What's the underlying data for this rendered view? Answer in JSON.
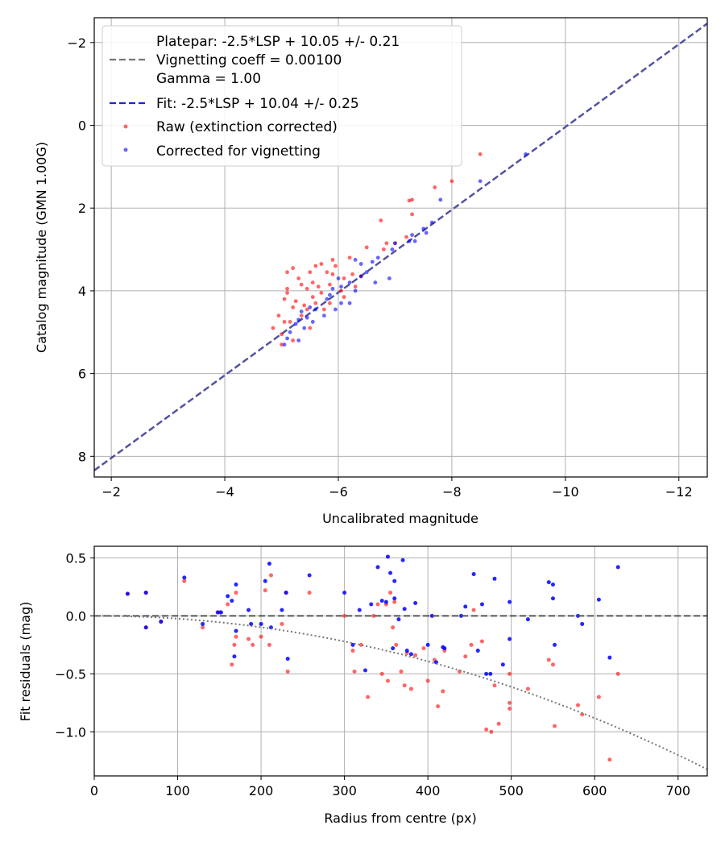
{
  "colors": {
    "raw": "#ff0000",
    "corrected": "#0000ff",
    "fit_line": "#2222cc",
    "platepar_line": "#777777",
    "grid": "#b0b0b0"
  },
  "chart_data": [
    {
      "id": "calibration",
      "type": "scatter",
      "xlabel": "Uncalibrated magnitude",
      "ylabel": "Catalog magnitude (GMN 1.00G)",
      "xlim": [
        -1.7,
        -12.5
      ],
      "ylim": [
        8.5,
        -2.6
      ],
      "xticks": [
        -2,
        -4,
        -6,
        -8,
        -10,
        -12
      ],
      "xtick_labels": [
        "−2",
        "−4",
        "−6",
        "−8",
        "−10",
        "−12"
      ],
      "yticks": [
        -2,
        0,
        2,
        4,
        6,
        8
      ],
      "ytick_labels": [
        "−2",
        "0",
        "2",
        "4",
        "6",
        "8"
      ],
      "grid": true,
      "legend": {
        "placement": "upper-left",
        "entries": [
          {
            "key": "platepar",
            "lines": [
              "Platepar: -2.5*LSP + 10.05 +/- 0.21",
              "Vignetting coeff = 0.00100",
              "Gamma = 1.00"
            ],
            "style": "dashed-gray"
          },
          {
            "key": "fit",
            "lines": [
              "Fit: -2.5*LSP + 10.04 +/- 0.25"
            ],
            "style": "dashed-blue"
          },
          {
            "key": "raw",
            "lines": [
              "Raw (extinction corrected)"
            ],
            "style": "dot-red"
          },
          {
            "key": "corrected",
            "lines": [
              "Corrected for vignetting"
            ],
            "style": "dot-blue"
          }
        ]
      },
      "lines": [
        {
          "name": "Fit",
          "slope": 1,
          "intercept": 10.04,
          "x_range": [
            -1.7,
            -12.5
          ]
        },
        {
          "name": "Platepar",
          "slope": 1,
          "intercept": 10.05,
          "x_range": [
            -1.7,
            -12.5
          ]
        }
      ],
      "series": [
        {
          "name": "Raw (extinction corrected)",
          "points": [
            [
              -8.5,
              0.7
            ],
            [
              -8.0,
              1.35
            ],
            [
              -7.7,
              1.5
            ],
            [
              -7.3,
              1.8
            ],
            [
              -7.25,
              1.82
            ],
            [
              -7.3,
              2.15
            ],
            [
              -7.2,
              2.7
            ],
            [
              -6.75,
              2.3
            ],
            [
              -7.0,
              2.85
            ],
            [
              -6.85,
              2.85
            ],
            [
              -6.8,
              3.0
            ],
            [
              -6.5,
              2.95
            ],
            [
              -6.2,
              3.2
            ],
            [
              -5.9,
              3.25
            ],
            [
              -5.95,
              3.4
            ],
            [
              -5.7,
              3.35
            ],
            [
              -5.6,
              3.4
            ],
            [
              -5.8,
              3.55
            ],
            [
              -5.5,
              3.55
            ],
            [
              -5.2,
              3.45
            ],
            [
              -5.1,
              3.55
            ],
            [
              -5.9,
              3.6
            ],
            [
              -6.25,
              3.6
            ],
            [
              -6.4,
              3.65
            ],
            [
              -6.1,
              3.7
            ],
            [
              -5.3,
              3.7
            ],
            [
              -5.55,
              3.8
            ],
            [
              -5.85,
              3.85
            ],
            [
              -5.65,
              3.9
            ],
            [
              -5.45,
              3.95
            ],
            [
              -5.1,
              3.95
            ],
            [
              -6.05,
              4.0
            ],
            [
              -5.1,
              4.05
            ],
            [
              -5.7,
              4.05
            ],
            [
              -5.05,
              4.2
            ],
            [
              -5.25,
              4.25
            ],
            [
              -5.6,
              4.3
            ],
            [
              -5.85,
              4.3
            ],
            [
              -5.2,
              4.4
            ],
            [
              -5.45,
              4.45
            ],
            [
              -4.95,
              4.6
            ],
            [
              -5.35,
              4.6
            ],
            [
              -5.05,
              4.75
            ],
            [
              -5.15,
              4.75
            ],
            [
              -4.85,
              4.9
            ],
            [
              -5.5,
              4.9
            ],
            [
              -5.0,
              5.05
            ],
            [
              -5.2,
              5.2
            ],
            [
              -5.0,
              5.3
            ],
            [
              -5.4,
              4.35
            ],
            [
              -5.75,
              4.45
            ],
            [
              -6.1,
              4.15
            ],
            [
              -6.3,
              3.9
            ],
            [
              -5.35,
              3.85
            ],
            [
              -5.55,
              4.15
            ]
          ]
        },
        {
          "name": "Corrected for vignetting",
          "points": [
            [
              -9.3,
              0.7
            ],
            [
              -8.5,
              1.35
            ],
            [
              -7.8,
              1.8
            ],
            [
              -7.65,
              2.35
            ],
            [
              -7.5,
              2.5
            ],
            [
              -7.55,
              2.6
            ],
            [
              -7.3,
              2.65
            ],
            [
              -7.35,
              2.8
            ],
            [
              -7.25,
              2.8
            ],
            [
              -7.0,
              2.85
            ],
            [
              -6.95,
              3.0
            ],
            [
              -6.7,
              3.2
            ],
            [
              -6.6,
              3.3
            ],
            [
              -6.4,
              3.35
            ],
            [
              -6.5,
              3.55
            ],
            [
              -6.3,
              3.25
            ],
            [
              -6.9,
              3.7
            ],
            [
              -6.65,
              3.8
            ],
            [
              -6.4,
              3.65
            ],
            [
              -6.2,
              3.8
            ],
            [
              -6.0,
              3.7
            ],
            [
              -6.05,
              3.9
            ],
            [
              -6.3,
              4.0
            ],
            [
              -5.9,
              3.95
            ],
            [
              -5.8,
              4.2
            ],
            [
              -6.05,
              4.3
            ],
            [
              -5.6,
              4.45
            ],
            [
              -5.5,
              4.4
            ],
            [
              -5.75,
              4.6
            ],
            [
              -5.35,
              4.5
            ],
            [
              -5.45,
              4.65
            ],
            [
              -5.3,
              4.7
            ],
            [
              -5.25,
              4.8
            ],
            [
              -5.4,
              4.9
            ],
            [
              -5.55,
              4.75
            ],
            [
              -5.15,
              5.0
            ],
            [
              -5.1,
              5.15
            ],
            [
              -5.3,
              5.2
            ],
            [
              -5.05,
              5.3
            ],
            [
              -5.85,
              4.1
            ],
            [
              -6.2,
              4.3
            ],
            [
              -5.95,
              4.45
            ]
          ]
        }
      ]
    },
    {
      "id": "residuals",
      "type": "scatter",
      "xlabel": "Radius from centre (px)",
      "ylabel": "Fit residuals (mag)",
      "xlim": [
        0,
        735
      ],
      "ylim": [
        -1.38,
        0.6
      ],
      "xticks": [
        0,
        100,
        200,
        300,
        400,
        500,
        600,
        700
      ],
      "xtick_labels": [
        "0",
        "100",
        "200",
        "300",
        "400",
        "500",
        "600",
        "700"
      ],
      "yticks": [
        0.5,
        0.0,
        -0.5,
        -1.0
      ],
      "ytick_labels": [
        "0.5",
        "0.0",
        "−0.5",
        "−1.0"
      ],
      "grid": true,
      "reference_lines": [
        {
          "name": "zero",
          "y": 0.0,
          "style": "dashed-gray"
        },
        {
          "name": "vignetting model",
          "curve": "-0.00000245*r^2",
          "style": "dotted-gray"
        }
      ],
      "series": [
        {
          "name": "Raw (extinction corrected)",
          "points": [
            [
              40,
              0.19
            ],
            [
              62,
              0.2
            ],
            [
              62,
              -0.1
            ],
            [
              80,
              -0.05
            ],
            [
              108,
              0.3
            ],
            [
              130,
              -0.1
            ],
            [
              150,
              0.03
            ],
            [
              160,
              0.1
            ],
            [
              165,
              -0.42
            ],
            [
              168,
              -0.25
            ],
            [
              170,
              0.2
            ],
            [
              170,
              -0.18
            ],
            [
              185,
              -0.2
            ],
            [
              190,
              -0.25
            ],
            [
              200,
              -0.18
            ],
            [
              205,
              0.22
            ],
            [
              210,
              -0.25
            ],
            [
              212,
              0.35
            ],
            [
              225,
              -0.07
            ],
            [
              230,
              0.2
            ],
            [
              232,
              -0.48
            ],
            [
              258,
              0.2
            ],
            [
              300,
              0.0
            ],
            [
              310,
              -0.3
            ],
            [
              312,
              -0.48
            ],
            [
              320,
              -0.25
            ],
            [
              328,
              -0.7
            ],
            [
              335,
              0.0
            ],
            [
              340,
              0.1
            ],
            [
              345,
              -0.5
            ],
            [
              350,
              0.1
            ],
            [
              352,
              -0.56
            ],
            [
              355,
              0.2
            ],
            [
              358,
              -0.1
            ],
            [
              362,
              -0.25
            ],
            [
              368,
              -0.48
            ],
            [
              372,
              -0.6
            ],
            [
              375,
              -0.32
            ],
            [
              380,
              -0.63
            ],
            [
              385,
              -0.34
            ],
            [
              395,
              -0.28
            ],
            [
              400,
              -0.56
            ],
            [
              408,
              -0.38
            ],
            [
              412,
              -0.78
            ],
            [
              418,
              -0.65
            ],
            [
              438,
              -0.48
            ],
            [
              445,
              -0.35
            ],
            [
              452,
              -0.25
            ],
            [
              465,
              -0.22
            ],
            [
              470,
              -0.98
            ],
            [
              476,
              -1.0
            ],
            [
              480,
              -0.6
            ],
            [
              485,
              -0.93
            ],
            [
              498,
              -0.5
            ],
            [
              498,
              -0.75
            ],
            [
              498,
              -0.8
            ],
            [
              520,
              -0.63
            ],
            [
              545,
              -0.38
            ],
            [
              550,
              -0.42
            ],
            [
              552,
              -0.95
            ],
            [
              580,
              -0.77
            ],
            [
              585,
              -0.85
            ],
            [
              605,
              -0.7
            ],
            [
              618,
              -1.24
            ],
            [
              628,
              -0.5
            ],
            [
              360,
              0.12
            ],
            [
              420,
              -0.3
            ],
            [
              455,
              0.05
            ]
          ]
        },
        {
          "name": "Corrected for vignetting",
          "points": [
            [
              40,
              0.19
            ],
            [
              62,
              0.2
            ],
            [
              62,
              -0.1
            ],
            [
              80,
              -0.05
            ],
            [
              108,
              0.33
            ],
            [
              130,
              -0.07
            ],
            [
              148,
              0.03
            ],
            [
              152,
              0.03
            ],
            [
              160,
              0.17
            ],
            [
              165,
              0.13
            ],
            [
              168,
              -0.35
            ],
            [
              170,
              0.27
            ],
            [
              170,
              -0.13
            ],
            [
              185,
              0.05
            ],
            [
              188,
              -0.07
            ],
            [
              200,
              -0.07
            ],
            [
              205,
              0.3
            ],
            [
              210,
              0.45
            ],
            [
              212,
              -0.1
            ],
            [
              225,
              0.05
            ],
            [
              230,
              0.2
            ],
            [
              232,
              -0.37
            ],
            [
              258,
              0.35
            ],
            [
              300,
              0.2
            ],
            [
              310,
              -0.25
            ],
            [
              318,
              0.05
            ],
            [
              325,
              -0.47
            ],
            [
              332,
              0.1
            ],
            [
              340,
              0.42
            ],
            [
              345,
              0.13
            ],
            [
              350,
              0.12
            ],
            [
              352,
              0.51
            ],
            [
              355,
              0.37
            ],
            [
              358,
              -0.28
            ],
            [
              360,
              0.3
            ],
            [
              365,
              -0.03
            ],
            [
              370,
              0.48
            ],
            [
              372,
              0.06
            ],
            [
              375,
              -0.3
            ],
            [
              380,
              -0.33
            ],
            [
              385,
              0.11
            ],
            [
              400,
              -0.25
            ],
            [
              405,
              0.0
            ],
            [
              410,
              -0.4
            ],
            [
              418,
              -0.27
            ],
            [
              440,
              0.0
            ],
            [
              445,
              0.08
            ],
            [
              455,
              0.36
            ],
            [
              460,
              -0.3
            ],
            [
              465,
              0.1
            ],
            [
              470,
              -0.5
            ],
            [
              475,
              -0.5
            ],
            [
              480,
              0.32
            ],
            [
              490,
              -0.42
            ],
            [
              498,
              0.12
            ],
            [
              498,
              -0.2
            ],
            [
              520,
              -0.03
            ],
            [
              545,
              0.29
            ],
            [
              550,
              0.27
            ],
            [
              550,
              0.15
            ],
            [
              552,
              -0.25
            ],
            [
              580,
              0.0
            ],
            [
              585,
              -0.07
            ],
            [
              605,
              0.14
            ],
            [
              618,
              -0.36
            ],
            [
              628,
              0.42
            ],
            [
              360,
              0.15
            ],
            [
              420,
              -0.28
            ]
          ]
        }
      ]
    }
  ]
}
